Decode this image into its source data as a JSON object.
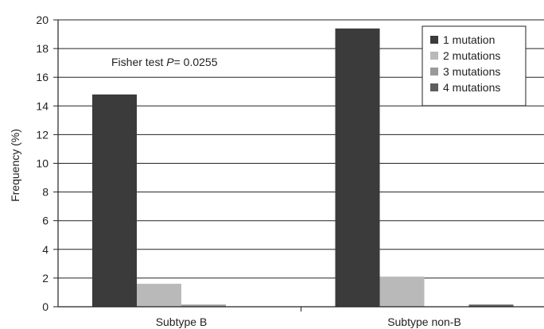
{
  "chart_data": {
    "type": "bar",
    "categories": [
      "Subtype B",
      "Subtype non-B"
    ],
    "series": [
      {
        "name": "1 mutation",
        "values": [
          14.8,
          19.4
        ],
        "color": "#3b3b3b"
      },
      {
        "name": "2 mutations",
        "values": [
          1.6,
          2.1
        ],
        "color": "#b9b9b9"
      },
      {
        "name": "3 mutations",
        "values": [
          0.15,
          0.0
        ],
        "color": "#9a9a9a"
      },
      {
        "name": "4 mutations",
        "values": [
          0.0,
          0.15
        ],
        "color": "#5e5e5e"
      }
    ],
    "ylabel": "Frequency (%)",
    "xlabel": "",
    "ylim": [
      0,
      20
    ],
    "yticks": [
      0,
      2,
      4,
      6,
      8,
      10,
      12,
      14,
      16,
      18,
      20
    ],
    "grid": true,
    "legend_position": "top-right",
    "annotation": {
      "prefix": "Fisher test ",
      "stat": "P",
      "rest": "= 0.0255"
    }
  }
}
